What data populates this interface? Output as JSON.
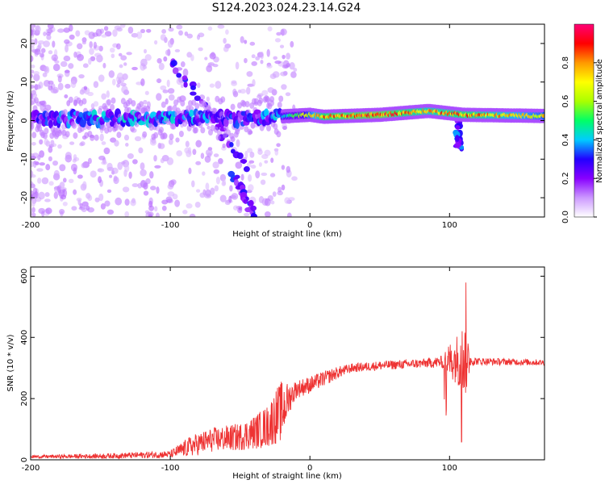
{
  "title": "S124.2023.024.23.14.G24",
  "chart_data": [
    {
      "type": "heatmap",
      "xlabel": "Height of straight line (km)",
      "ylabel": "Frequency (Hz)",
      "xlim": [
        -200,
        168
      ],
      "ylim": [
        -25,
        25
      ],
      "xticks": [
        -200,
        -100,
        0,
        100
      ],
      "yticks": [
        -20,
        -10,
        0,
        10,
        20
      ],
      "colorbar": {
        "label": "Normalized spectral amplitude",
        "range": [
          0,
          1
        ],
        "ticks": [
          "0.0",
          "0.2",
          "0.4",
          "0.6",
          "0.8"
        ],
        "tick_values": [
          0,
          0.2,
          0.4,
          0.6,
          0.8
        ],
        "colors": [
          "#ffffff",
          "#cc99ff",
          "#8800ff",
          "#2200ff",
          "#00ccff",
          "#00ff66",
          "#aaff00",
          "#ffff00",
          "#ff9900",
          "#ff0000",
          "#ff0077"
        ]
      },
      "band": [
        {
          "x": -200,
          "f": 0.5,
          "amp": 0.25
        },
        {
          "x": -150,
          "f": 0.5,
          "amp": 0.3
        },
        {
          "x": -100,
          "f": 0.8,
          "amp": 0.3
        },
        {
          "x": -50,
          "f": 0.5,
          "amp": 0.25
        },
        {
          "x": -25,
          "f": 1.0,
          "amp": 0.3
        },
        {
          "x": 0,
          "f": 1.5,
          "amp": 0.7
        },
        {
          "x": 10,
          "f": 1.0,
          "amp": 0.85
        },
        {
          "x": 50,
          "f": 1.5,
          "amp": 0.9
        },
        {
          "x": 85,
          "f": 2.5,
          "amp": 0.8
        },
        {
          "x": 110,
          "f": 1.5,
          "amp": 0.85
        },
        {
          "x": 168,
          "f": 1.2,
          "amp": 0.7
        }
      ],
      "streaks": [
        {
          "from": [
            -100,
            16
          ],
          "to": [
            -45,
            -12
          ],
          "amp": 0.3
        },
        {
          "from": [
            -55,
            -14
          ],
          "to": [
            -40,
            -25
          ],
          "amp": 0.3
        },
        {
          "from": [
            105,
            2
          ],
          "to": [
            107,
            -7
          ],
          "amp": 0.35
        }
      ]
    },
    {
      "type": "line",
      "xlabel": "Height of straight line (km)",
      "ylabel": "SNR (10 * v/v)",
      "xlim": [
        -200,
        168
      ],
      "ylim": [
        0,
        630
      ],
      "xticks": [
        -200,
        -100,
        0,
        100
      ],
      "yticks": [
        0,
        200,
        400,
        600
      ],
      "color": "#ee3333",
      "series": [
        {
          "x": [
            -200,
            -150,
            -100,
            -85,
            -70,
            -50,
            -40,
            -30,
            -25,
            -20,
            -15,
            -10,
            0,
            10,
            20,
            30,
            50,
            80,
            95,
            100,
            105,
            110,
            112,
            115,
            120,
            168
          ],
          "y": [
            10,
            12,
            18,
            45,
            65,
            75,
            90,
            110,
            140,
            160,
            200,
            230,
            245,
            265,
            285,
            300,
            308,
            315,
            320,
            325,
            330,
            330,
            330,
            325,
            322,
            318
          ],
          "noise": [
            5,
            8,
            12,
            35,
            40,
            45,
            55,
            70,
            90,
            100,
            50,
            30,
            28,
            25,
            20,
            15,
            15,
            15,
            20,
            60,
            80,
            120,
            120,
            20,
            12,
            10
          ]
        }
      ]
    }
  ]
}
